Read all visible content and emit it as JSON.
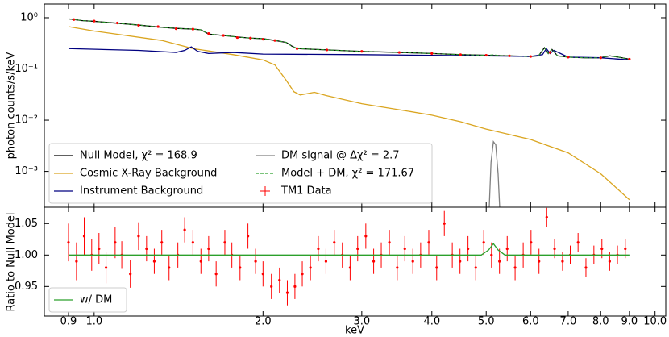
{
  "chart_data": [
    {
      "type": "line",
      "ylabel": "photon counts/s/keV",
      "xscale": "log",
      "yscale": "log",
      "xlim": [
        0.815,
        10.45
      ],
      "ylim": [
        0.0002,
        1.85
      ],
      "xticks": [
        0.9,
        1,
        2,
        3,
        4,
        5,
        6,
        7,
        8,
        9,
        10
      ],
      "yticks": [
        {
          "value": 1,
          "label": "10⁰"
        },
        {
          "value": 0.1,
          "label": "10⁻¹"
        },
        {
          "value": 0.01,
          "label": "10⁻²"
        },
        {
          "value": 0.001,
          "label": "10⁻³"
        }
      ],
      "legend": "lower left",
      "series": [
        {
          "name": "Null Model, χ² = 168.9",
          "color": "#000000",
          "style": "solid",
          "x": [
            0.9,
            0.95,
            1.0,
            1.1,
            1.2,
            1.3,
            1.4,
            1.5,
            1.55,
            1.6,
            1.7,
            1.8,
            1.9,
            2.0,
            2.1,
            2.2,
            2.25,
            2.3,
            2.5,
            3.0,
            3.5,
            4.0,
            4.5,
            5.0,
            5.5,
            6.0,
            6.2,
            6.35,
            6.45,
            6.55,
            6.7,
            7.0,
            7.5,
            8.0,
            8.3,
            8.6,
            9.0
          ],
          "values": [
            0.95,
            0.88,
            0.85,
            0.78,
            0.72,
            0.66,
            0.62,
            0.6,
            0.58,
            0.48,
            0.45,
            0.42,
            0.4,
            0.39,
            0.36,
            0.33,
            0.28,
            0.25,
            0.24,
            0.22,
            0.21,
            0.2,
            0.19,
            0.185,
            0.18,
            0.175,
            0.18,
            0.26,
            0.2,
            0.24,
            0.18,
            0.17,
            0.165,
            0.165,
            0.18,
            0.17,
            0.155
          ]
        },
        {
          "name": "Cosmic X-Ray Background",
          "color": "#daa520",
          "style": "solid",
          "x": [
            0.9,
            1.0,
            1.32,
            1.5,
            1.77,
            2.0,
            2.1,
            2.2,
            2.27,
            2.33,
            2.4,
            2.47,
            2.6,
            3.0,
            3.5,
            4.0,
            4.5,
            5.0,
            6.0,
            7.0,
            8.0,
            9.0
          ],
          "values": [
            0.67,
            0.55,
            0.36,
            0.25,
            0.19,
            0.15,
            0.12,
            0.06,
            0.036,
            0.031,
            0.033,
            0.035,
            0.03,
            0.021,
            0.016,
            0.0125,
            0.0093,
            0.0067,
            0.0042,
            0.0023,
            0.0009,
            0.00028
          ]
        },
        {
          "name": "Instrument Background",
          "color": "#000080",
          "style": "solid",
          "x": [
            0.9,
            1.2,
            1.4,
            1.45,
            1.49,
            1.53,
            1.6,
            1.77,
            2.0,
            3.0,
            5.0,
            6.0,
            6.3,
            6.4,
            6.5,
            6.6,
            7.0,
            8.0,
            9.0
          ],
          "values": [
            0.25,
            0.23,
            0.21,
            0.23,
            0.27,
            0.22,
            0.2,
            0.21,
            0.195,
            0.19,
            0.18,
            0.175,
            0.19,
            0.25,
            0.2,
            0.23,
            0.17,
            0.165,
            0.15
          ]
        },
        {
          "name": "DM signal @ Δχ² = 2.7",
          "color": "#808080",
          "style": "solid",
          "x": [
            5.05,
            5.1,
            5.15,
            5.2,
            5.25,
            5.3
          ],
          "values": [
            0.0001,
            0.0015,
            0.0038,
            0.0033,
            0.0009,
            0.0001
          ]
        },
        {
          "name": "Model + DM, χ² = 171.67",
          "color": "#2ca02c",
          "style": "dashed",
          "x": [
            0.9,
            0.95,
            1.0,
            1.1,
            1.2,
            1.3,
            1.4,
            1.5,
            1.55,
            1.6,
            1.7,
            1.8,
            1.9,
            2.0,
            2.1,
            2.2,
            2.25,
            2.3,
            2.5,
            3.0,
            3.5,
            4.0,
            4.5,
            5.0,
            5.15,
            5.3,
            5.5,
            6.0,
            6.2,
            6.35,
            6.45,
            6.55,
            6.7,
            7.0,
            7.5,
            8.0,
            8.3,
            8.6,
            9.0
          ],
          "values": [
            0.95,
            0.88,
            0.85,
            0.78,
            0.72,
            0.66,
            0.62,
            0.6,
            0.58,
            0.48,
            0.45,
            0.42,
            0.4,
            0.39,
            0.36,
            0.33,
            0.28,
            0.25,
            0.24,
            0.22,
            0.21,
            0.2,
            0.19,
            0.185,
            0.189,
            0.182,
            0.18,
            0.175,
            0.18,
            0.26,
            0.2,
            0.24,
            0.18,
            0.17,
            0.165,
            0.165,
            0.18,
            0.17,
            0.155
          ]
        },
        {
          "name": "TM1 Data",
          "color": "#ff0000",
          "style": "errorbar",
          "x": [
            0.92,
            1.0,
            1.1,
            1.2,
            1.3,
            1.4,
            1.5,
            1.6,
            1.7,
            1.8,
            1.9,
            2.0,
            2.1,
            2.3,
            2.6,
            3.0,
            3.5,
            4.0,
            4.5,
            5.0,
            5.5,
            6.0,
            6.5,
            7.0,
            8.0,
            9.0
          ],
          "values": [
            0.92,
            0.86,
            0.79,
            0.71,
            0.67,
            0.61,
            0.6,
            0.49,
            0.45,
            0.41,
            0.4,
            0.38,
            0.36,
            0.25,
            0.235,
            0.22,
            0.21,
            0.2,
            0.19,
            0.185,
            0.18,
            0.175,
            0.21,
            0.17,
            0.165,
            0.155
          ],
          "errors": [
            0.03,
            0.03,
            0.025,
            0.02,
            0.02,
            0.02,
            0.02,
            0.015,
            0.015,
            0.012,
            0.012,
            0.012,
            0.011,
            0.008,
            0.008,
            0.007,
            0.007,
            0.006,
            0.006,
            0.006,
            0.006,
            0.006,
            0.007,
            0.006,
            0.006,
            0.006
          ]
        }
      ]
    },
    {
      "type": "line",
      "ylabel": "Ratio to Null Model",
      "xlabel": "keV",
      "xscale": "log",
      "xlim": [
        0.815,
        10.45
      ],
      "ylim": [
        0.903,
        1.076
      ],
      "xticks": [
        0.9,
        {
          "value": 1,
          "label": "1.0"
        },
        {
          "value": 2,
          "label": "2.0"
        },
        {
          "value": 3,
          "label": "3.0"
        },
        {
          "value": 4,
          "label": "4.0"
        },
        {
          "value": 5,
          "label": "5.0"
        },
        {
          "value": 6,
          "label": "6.0"
        },
        {
          "value": 7,
          "label": "7.0"
        },
        {
          "value": 8,
          "label": "8.0"
        },
        {
          "value": 9,
          "label": "9.0"
        },
        {
          "value": 10,
          "label": "10.0"
        }
      ],
      "yticks": [
        0.95,
        {
          "value": 1,
          "label": "1.00"
        },
        1.05
      ],
      "legend": "lower left",
      "series": [
        {
          "name": "TM1 Data",
          "color": "#ff0000",
          "style": "errorbar",
          "legend": false,
          "x": [
            0.9,
            0.93,
            0.96,
            0.99,
            1.02,
            1.05,
            1.09,
            1.12,
            1.16,
            1.2,
            1.24,
            1.28,
            1.32,
            1.36,
            1.41,
            1.45,
            1.5,
            1.55,
            1.6,
            1.65,
            1.71,
            1.76,
            1.82,
            1.88,
            1.94,
            2.0,
            2.07,
            2.14,
            2.21,
            2.28,
            2.35,
            2.43,
            2.51,
            2.59,
            2.68,
            2.77,
            2.86,
            2.95,
            3.05,
            3.15,
            3.25,
            3.36,
            3.47,
            3.58,
            3.7,
            3.82,
            3.95,
            4.08,
            4.21,
            4.35,
            4.49,
            4.64,
            4.79,
            4.95,
            5.11,
            5.28,
            5.45,
            5.63,
            5.82,
            6.01,
            6.21,
            6.41,
            6.62,
            6.84,
            7.06,
            7.29,
            7.53,
            7.78,
            8.04,
            8.3,
            8.57,
            8.85
          ],
          "values": [
            1.02,
            0.99,
            1.03,
            1.0,
            1.01,
            0.98,
            1.02,
            1.0,
            0.97,
            1.03,
            1.01,
            0.99,
            1.02,
            0.98,
            1.0,
            1.04,
            1.02,
            0.99,
            1.01,
            0.97,
            1.02,
            1.0,
            0.98,
            1.03,
            0.99,
            0.97,
            0.95,
            0.96,
            0.94,
            0.95,
            0.97,
            0.98,
            1.01,
            0.99,
            1.02,
            1.0,
            0.98,
            1.01,
            1.03,
            0.99,
            1.0,
            1.02,
            0.98,
            1.01,
            0.99,
            1.0,
            1.02,
            0.98,
            1.05,
            1.0,
            0.99,
            1.01,
            0.98,
            1.02,
            1.0,
            0.99,
            1.01,
            0.98,
            1.0,
            1.02,
            0.99,
            1.06,
            1.01,
            0.99,
            1.0,
            1.02,
            0.98,
            1.0,
            1.01,
            0.99,
            1.0,
            1.01
          ],
          "errors": [
            0.03,
            0.03,
            0.03,
            0.025,
            0.025,
            0.025,
            0.025,
            0.022,
            0.022,
            0.022,
            0.02,
            0.02,
            0.02,
            0.02,
            0.02,
            0.02,
            0.02,
            0.02,
            0.02,
            0.02,
            0.02,
            0.02,
            0.02,
            0.02,
            0.02,
            0.02,
            0.02,
            0.02,
            0.02,
            0.02,
            0.02,
            0.02,
            0.02,
            0.02,
            0.02,
            0.02,
            0.02,
            0.02,
            0.02,
            0.02,
            0.02,
            0.02,
            0.02,
            0.02,
            0.02,
            0.02,
            0.02,
            0.02,
            0.02,
            0.02,
            0.02,
            0.02,
            0.02,
            0.02,
            0.02,
            0.02,
            0.02,
            0.02,
            0.02,
            0.02,
            0.02,
            0.015,
            0.015,
            0.015,
            0.015,
            0.015,
            0.015,
            0.015,
            0.015,
            0.015,
            0.015,
            0.015
          ]
        },
        {
          "name": "w/ DM",
          "color": "#2ca02c",
          "style": "solid",
          "x": [
            0.9,
            4.9,
            5.05,
            5.15,
            5.25,
            5.4,
            9.0
          ],
          "values": [
            1,
            1,
            1.008,
            1.018,
            1.008,
            1,
            1
          ]
        }
      ]
    }
  ]
}
